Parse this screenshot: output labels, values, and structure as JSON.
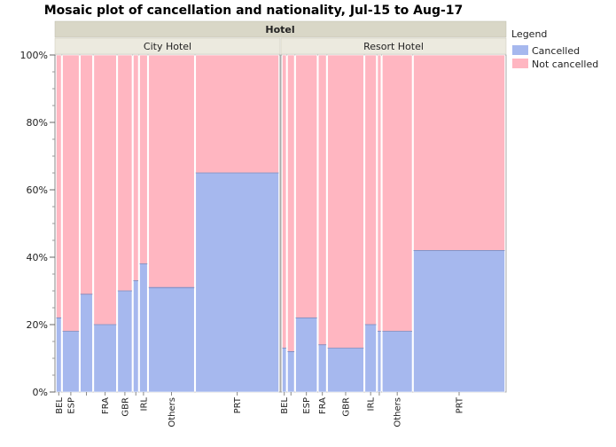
{
  "chart_data": {
    "type": "mosaic",
    "title": "Mosaic plot of cancellation and nationality, Jul-15 to Aug-17",
    "facet_header": "Hotel",
    "y_ticks": [
      "0%",
      "20%",
      "40%",
      "60%",
      "80%",
      "100%"
    ],
    "ylim": [
      0,
      100
    ],
    "legend": {
      "title": "Legend",
      "placement": "top-right",
      "entries": [
        {
          "label": "Cancelled",
          "color": "#a6b8ee"
        },
        {
          "label": "Not cancelled",
          "color": "#ffb6c1"
        }
      ]
    },
    "panels": [
      {
        "name": "City Hotel",
        "categories": [
          {
            "label": "BEL",
            "width": 0.9,
            "cancelled_pct": 22
          },
          {
            "label": "ESP",
            "width": 3.0,
            "cancelled_pct": 18
          },
          {
            "label": "",
            "width": 2.2,
            "cancelled_pct": 29
          },
          {
            "label": "FRA",
            "width": 4.1,
            "cancelled_pct": 20
          },
          {
            "label": "GBR",
            "width": 2.6,
            "cancelled_pct": 30
          },
          {
            "label": "",
            "width": 0.9,
            "cancelled_pct": 33
          },
          {
            "label": "IRL",
            "width": 1.4,
            "cancelled_pct": 38
          },
          {
            "label": "Others",
            "width": 8.3,
            "cancelled_pct": 31
          },
          {
            "label": "PRT",
            "width": 15.1,
            "cancelled_pct": 65
          }
        ]
      },
      {
        "name": "Resort Hotel",
        "categories": [
          {
            "label": "BEL",
            "width": 0.7,
            "cancelled_pct": 13
          },
          {
            "label": "",
            "width": 1.2,
            "cancelled_pct": 12
          },
          {
            "label": "ESP",
            "width": 3.8,
            "cancelled_pct": 22
          },
          {
            "label": "FRA",
            "width": 1.4,
            "cancelled_pct": 14
          },
          {
            "label": "GBR",
            "width": 6.4,
            "cancelled_pct": 13
          },
          {
            "label": "IRL",
            "width": 2.0,
            "cancelled_pct": 20
          },
          {
            "label": "",
            "width": 0.6,
            "cancelled_pct": 18
          },
          {
            "label": "Others",
            "width": 5.3,
            "cancelled_pct": 18
          },
          {
            "label": "PRT",
            "width": 16.2,
            "cancelled_pct": 42
          }
        ]
      }
    ]
  }
}
